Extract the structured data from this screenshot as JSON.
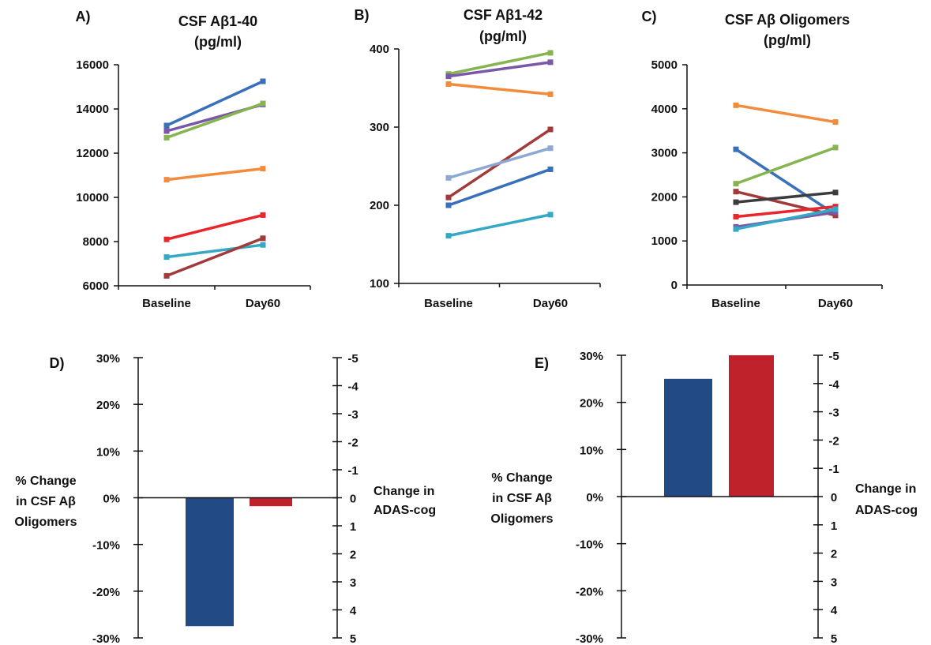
{
  "chart_data": [
    {
      "panel": "A)",
      "type": "line",
      "title": [
        "CSF Aβ1-40",
        "(pg/ml)"
      ],
      "categories": [
        "Baseline",
        "Day60"
      ],
      "ylim": [
        6000,
        16000
      ],
      "yticks": [
        6000,
        8000,
        10000,
        12000,
        14000,
        16000
      ],
      "series": [
        {
          "color": "#3a6fba",
          "values": [
            13250,
            15250
          ]
        },
        {
          "color": "#7b57a8",
          "values": [
            13000,
            14200
          ]
        },
        {
          "color": "#86b450",
          "values": [
            12700,
            14250
          ]
        },
        {
          "color": "#f28c3c",
          "values": [
            10800,
            11300
          ]
        },
        {
          "color": "#e8262b",
          "values": [
            8100,
            9200
          ]
        },
        {
          "color": "#34a8c4",
          "values": [
            7300,
            7850
          ]
        },
        {
          "color": "#a33a3a",
          "values": [
            6450,
            8150
          ]
        }
      ]
    },
    {
      "panel": "B)",
      "type": "line",
      "title": [
        "CSF Aβ1-42",
        "(pg/ml)"
      ],
      "categories": [
        "Baseline",
        "Day60"
      ],
      "ylim": [
        100,
        400
      ],
      "yticks": [
        100,
        200,
        300,
        400
      ],
      "series": [
        {
          "color": "#86b450",
          "values": [
            368,
            395
          ]
        },
        {
          "color": "#7b57a8",
          "values": [
            365,
            383
          ]
        },
        {
          "color": "#f28c3c",
          "values": [
            355,
            342
          ]
        },
        {
          "color": "#a33a3a",
          "values": [
            210,
            297
          ]
        },
        {
          "color": "#8ea8d4",
          "values": [
            235,
            273
          ]
        },
        {
          "color": "#3a6fba",
          "values": [
            200,
            246
          ]
        },
        {
          "color": "#34a8c4",
          "values": [
            161,
            188
          ]
        }
      ]
    },
    {
      "panel": "C)",
      "type": "line",
      "title": [
        "CSF Aβ Oligomers",
        "(pg/ml)"
      ],
      "categories": [
        "Baseline",
        "Day60"
      ],
      "ylim": [
        0,
        5000
      ],
      "yticks": [
        0,
        1000,
        2000,
        3000,
        4000,
        5000
      ],
      "series": [
        {
          "color": "#f28c3c",
          "values": [
            4080,
            3700
          ]
        },
        {
          "color": "#3a6fba",
          "values": [
            3080,
            1600
          ]
        },
        {
          "color": "#86b450",
          "values": [
            2300,
            3120
          ]
        },
        {
          "color": "#a33a3a",
          "values": [
            2120,
            1580
          ]
        },
        {
          "color": "#3c3c3c",
          "values": [
            1880,
            2100
          ]
        },
        {
          "color": "#e8262b",
          "values": [
            1550,
            1780
          ]
        },
        {
          "color": "#7b57a8",
          "values": [
            1320,
            1650
          ]
        },
        {
          "color": "#34a8c4",
          "values": [
            1270,
            1720
          ]
        }
      ]
    },
    {
      "panel": "D)",
      "type": "bar",
      "ylabel": [
        "% Change",
        "in CSF Aβ",
        "Oligomers"
      ],
      "y2label": [
        "Change in",
        "ADAS-cog"
      ],
      "yticks": [
        "-30%",
        "-20%",
        "-10%",
        "0%",
        "10%",
        "20%",
        "30%"
      ],
      "y2ticks": [
        "5",
        "4",
        "3",
        "2",
        "1",
        "0",
        "-1",
        "-2",
        "-3",
        "-4",
        "-5"
      ],
      "ylim": [
        -30,
        30
      ],
      "y2lim": [
        5,
        -5
      ],
      "bars": [
        {
          "axis": "left",
          "color": "#224a85",
          "value": -27.5
        },
        {
          "axis": "right",
          "color": "#c0222b",
          "value": 0.3
        }
      ]
    },
    {
      "panel": "E)",
      "type": "bar",
      "ylabel": [
        "% Change",
        "in CSF Aβ",
        "Oligomers"
      ],
      "y2label": [
        "Change in",
        "ADAS-cog"
      ],
      "yticks": [
        "-30%",
        "-20%",
        "-10%",
        "0%",
        "10%",
        "20%",
        "30%"
      ],
      "y2ticks": [
        "5",
        "4",
        "3",
        "2",
        "1",
        "0",
        "-1",
        "-2",
        "-3",
        "-4",
        "-5"
      ],
      "ylim": [
        -30,
        30
      ],
      "y2lim": [
        5,
        -5
      ],
      "bars": [
        {
          "axis": "left",
          "color": "#224a85",
          "value": 25
        },
        {
          "axis": "right",
          "color": "#c0222b",
          "value": -5
        }
      ]
    }
  ]
}
